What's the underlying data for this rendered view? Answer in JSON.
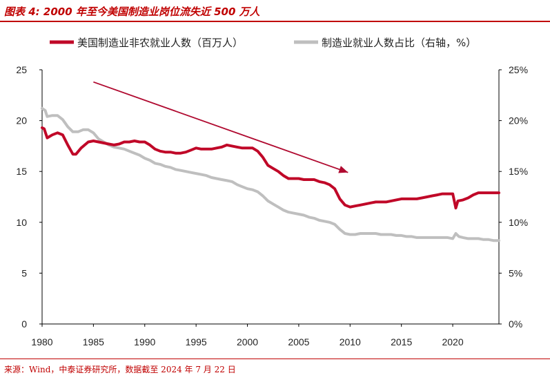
{
  "header": {
    "title": "图表 4:  2000 年至今美国制造业岗位流失近 500 万人"
  },
  "footer": {
    "source": "来源：Wind，中泰证券研究所，数据截至 2024 年 7 月 22 日"
  },
  "colors": {
    "employment": "#c00828",
    "share": "#bfbfbf",
    "arrow": "#b00a30",
    "accent": "#c00000"
  },
  "chart_data": {
    "type": "line",
    "title": "2000 年至今美国制造业岗位流失近 500 万人",
    "xlim": [
      1980,
      2024.5
    ],
    "x_ticks": [
      1980,
      1985,
      1990,
      1995,
      2000,
      2005,
      2010,
      2015,
      2020
    ],
    "y_left": {
      "lim": [
        0,
        25
      ],
      "ticks": [
        "0",
        "5",
        "10",
        "15",
        "20",
        "25"
      ]
    },
    "y_right": {
      "lim": [
        0,
        25
      ],
      "ticks": [
        "0%",
        "5%",
        "10%",
        "15%",
        "20%",
        "25%"
      ]
    },
    "legend_position": "top",
    "series": [
      {
        "name": "美国制造业非农就业人数（百万人）",
        "axis": "left",
        "points": [
          [
            1980.0,
            19.3
          ],
          [
            1980.2,
            19.2
          ],
          [
            1980.5,
            18.3
          ],
          [
            1981.0,
            18.6
          ],
          [
            1981.5,
            18.8
          ],
          [
            1982.0,
            18.6
          ],
          [
            1982.5,
            17.6
          ],
          [
            1983.0,
            16.7
          ],
          [
            1983.3,
            16.7
          ],
          [
            1983.8,
            17.3
          ],
          [
            1984.5,
            17.9
          ],
          [
            1985.0,
            18.0
          ],
          [
            1985.5,
            17.9
          ],
          [
            1986.0,
            17.8
          ],
          [
            1986.5,
            17.7
          ],
          [
            1987.0,
            17.6
          ],
          [
            1987.5,
            17.7
          ],
          [
            1988.0,
            17.9
          ],
          [
            1988.5,
            17.9
          ],
          [
            1989.0,
            18.0
          ],
          [
            1989.5,
            17.9
          ],
          [
            1990.0,
            17.9
          ],
          [
            1990.5,
            17.6
          ],
          [
            1991.0,
            17.2
          ],
          [
            1991.5,
            17.0
          ],
          [
            1992.0,
            16.9
          ],
          [
            1992.5,
            16.9
          ],
          [
            1993.0,
            16.8
          ],
          [
            1993.5,
            16.8
          ],
          [
            1994.0,
            16.9
          ],
          [
            1994.5,
            17.1
          ],
          [
            1995.0,
            17.3
          ],
          [
            1995.5,
            17.2
          ],
          [
            1996.0,
            17.2
          ],
          [
            1996.5,
            17.2
          ],
          [
            1997.0,
            17.3
          ],
          [
            1997.5,
            17.4
          ],
          [
            1998.0,
            17.6
          ],
          [
            1998.5,
            17.5
          ],
          [
            1999.0,
            17.4
          ],
          [
            1999.5,
            17.3
          ],
          [
            2000.0,
            17.3
          ],
          [
            2000.5,
            17.3
          ],
          [
            2001.0,
            17.0
          ],
          [
            2001.5,
            16.4
          ],
          [
            2002.0,
            15.6
          ],
          [
            2002.5,
            15.3
          ],
          [
            2003.0,
            15.0
          ],
          [
            2003.5,
            14.6
          ],
          [
            2004.0,
            14.3
          ],
          [
            2004.5,
            14.3
          ],
          [
            2005.0,
            14.3
          ],
          [
            2005.5,
            14.2
          ],
          [
            2006.0,
            14.2
          ],
          [
            2006.5,
            14.2
          ],
          [
            2007.0,
            14.0
          ],
          [
            2007.5,
            13.9
          ],
          [
            2008.0,
            13.7
          ],
          [
            2008.5,
            13.3
          ],
          [
            2009.0,
            12.3
          ],
          [
            2009.5,
            11.7
          ],
          [
            2010.0,
            11.5
          ],
          [
            2010.5,
            11.6
          ],
          [
            2011.0,
            11.7
          ],
          [
            2011.5,
            11.8
          ],
          [
            2012.0,
            11.9
          ],
          [
            2012.5,
            12.0
          ],
          [
            2013.0,
            12.0
          ],
          [
            2013.5,
            12.0
          ],
          [
            2014.0,
            12.1
          ],
          [
            2014.5,
            12.2
          ],
          [
            2015.0,
            12.3
          ],
          [
            2015.5,
            12.3
          ],
          [
            2016.0,
            12.3
          ],
          [
            2016.5,
            12.3
          ],
          [
            2017.0,
            12.4
          ],
          [
            2017.5,
            12.5
          ],
          [
            2018.0,
            12.6
          ],
          [
            2018.5,
            12.7
          ],
          [
            2019.0,
            12.8
          ],
          [
            2019.5,
            12.8
          ],
          [
            2020.0,
            12.8
          ],
          [
            2020.3,
            11.4
          ],
          [
            2020.5,
            12.1
          ],
          [
            2021.0,
            12.2
          ],
          [
            2021.5,
            12.4
          ],
          [
            2022.0,
            12.7
          ],
          [
            2022.5,
            12.9
          ],
          [
            2023.0,
            12.9
          ],
          [
            2023.5,
            12.9
          ],
          [
            2024.0,
            12.9
          ],
          [
            2024.5,
            12.9
          ]
        ]
      },
      {
        "name": "制造业就业人数占比（右轴，%）",
        "axis": "right",
        "points": [
          [
            1980.0,
            21.2
          ],
          [
            1980.3,
            21.0
          ],
          [
            1980.5,
            20.4
          ],
          [
            1981.0,
            20.5
          ],
          [
            1981.5,
            20.5
          ],
          [
            1982.0,
            20.1
          ],
          [
            1982.5,
            19.4
          ],
          [
            1983.0,
            18.9
          ],
          [
            1983.5,
            18.9
          ],
          [
            1984.0,
            19.1
          ],
          [
            1984.5,
            19.1
          ],
          [
            1985.0,
            18.8
          ],
          [
            1985.5,
            18.2
          ],
          [
            1986.0,
            17.9
          ],
          [
            1986.5,
            17.6
          ],
          [
            1987.0,
            17.4
          ],
          [
            1987.5,
            17.3
          ],
          [
            1988.0,
            17.2
          ],
          [
            1988.5,
            17.0
          ],
          [
            1989.0,
            16.8
          ],
          [
            1989.5,
            16.6
          ],
          [
            1990.0,
            16.3
          ],
          [
            1990.5,
            16.1
          ],
          [
            1991.0,
            15.8
          ],
          [
            1991.5,
            15.7
          ],
          [
            1992.0,
            15.5
          ],
          [
            1992.5,
            15.4
          ],
          [
            1993.0,
            15.2
          ],
          [
            1993.5,
            15.1
          ],
          [
            1994.0,
            15.0
          ],
          [
            1994.5,
            14.9
          ],
          [
            1995.0,
            14.8
          ],
          [
            1995.5,
            14.7
          ],
          [
            1996.0,
            14.6
          ],
          [
            1996.5,
            14.4
          ],
          [
            1997.0,
            14.3
          ],
          [
            1997.5,
            14.2
          ],
          [
            1998.0,
            14.1
          ],
          [
            1998.5,
            14.0
          ],
          [
            1999.0,
            13.7
          ],
          [
            1999.5,
            13.5
          ],
          [
            2000.0,
            13.3
          ],
          [
            2000.5,
            13.2
          ],
          [
            2001.0,
            13.0
          ],
          [
            2001.5,
            12.6
          ],
          [
            2002.0,
            12.1
          ],
          [
            2002.5,
            11.8
          ],
          [
            2003.0,
            11.5
          ],
          [
            2003.5,
            11.2
          ],
          [
            2004.0,
            11.0
          ],
          [
            2004.5,
            10.9
          ],
          [
            2005.0,
            10.8
          ],
          [
            2005.5,
            10.7
          ],
          [
            2006.0,
            10.5
          ],
          [
            2006.5,
            10.4
          ],
          [
            2007.0,
            10.2
          ],
          [
            2007.5,
            10.1
          ],
          [
            2008.0,
            10.0
          ],
          [
            2008.5,
            9.8
          ],
          [
            2009.0,
            9.3
          ],
          [
            2009.5,
            8.9
          ],
          [
            2010.0,
            8.8
          ],
          [
            2010.5,
            8.8
          ],
          [
            2011.0,
            8.9
          ],
          [
            2011.5,
            8.9
          ],
          [
            2012.0,
            8.9
          ],
          [
            2012.5,
            8.9
          ],
          [
            2013.0,
            8.8
          ],
          [
            2013.5,
            8.8
          ],
          [
            2014.0,
            8.8
          ],
          [
            2014.5,
            8.7
          ],
          [
            2015.0,
            8.7
          ],
          [
            2015.5,
            8.6
          ],
          [
            2016.0,
            8.6
          ],
          [
            2016.5,
            8.5
          ],
          [
            2017.0,
            8.5
          ],
          [
            2017.5,
            8.5
          ],
          [
            2018.0,
            8.5
          ],
          [
            2018.5,
            8.5
          ],
          [
            2019.0,
            8.5
          ],
          [
            2019.5,
            8.5
          ],
          [
            2020.0,
            8.4
          ],
          [
            2020.3,
            8.9
          ],
          [
            2020.6,
            8.6
          ],
          [
            2021.0,
            8.5
          ],
          [
            2021.5,
            8.4
          ],
          [
            2022.0,
            8.4
          ],
          [
            2022.5,
            8.4
          ],
          [
            2023.0,
            8.3
          ],
          [
            2023.5,
            8.3
          ],
          [
            2024.0,
            8.2
          ],
          [
            2024.5,
            8.2
          ]
        ]
      }
    ],
    "annotations": [
      {
        "type": "arrow",
        "from": [
          1985.0,
          23.8
        ],
        "to": [
          2009.8,
          14.9
        ]
      }
    ]
  }
}
